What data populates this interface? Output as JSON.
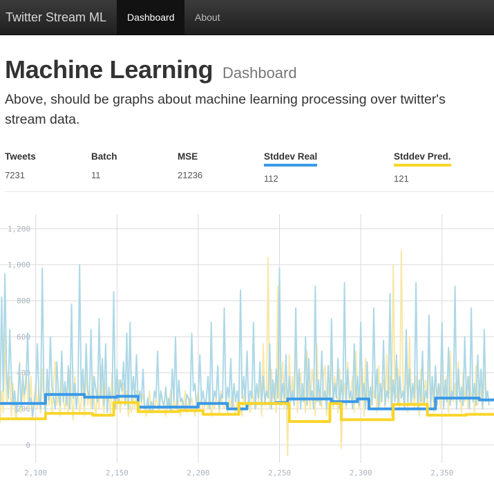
{
  "navbar": {
    "brand": "Twitter Stream ML",
    "items": [
      {
        "label": "Dashboard",
        "active": true
      },
      {
        "label": "About",
        "active": false
      }
    ]
  },
  "header": {
    "title": "Machine Learning",
    "subtitle": "Dashboard",
    "lead": "Above, should be graphs about machine learning processing over twitter's stream data."
  },
  "stats": [
    {
      "label": "Tweets",
      "value": "7231"
    },
    {
      "label": "Batch",
      "value": "11"
    },
    {
      "label": "MSE",
      "value": "21236"
    },
    {
      "label": "Stddev Real",
      "value": "112",
      "underline_color": "#3a99e8"
    },
    {
      "label": "Stddev Pred.",
      "value": "121",
      "underline_color": "#fad52a"
    }
  ],
  "colors": {
    "real_series": "#a9d6e6",
    "pred_series": "#f6e6a0",
    "stddev_real": "#3a99e8",
    "stddev_pred": "#fad52a",
    "grid": "#d9d9d9",
    "tick_text": "#a9b3be"
  },
  "chart_data": {
    "type": "line",
    "xlim": [
      2078,
      2382
    ],
    "ylim": [
      -100,
      1280
    ],
    "yticks": [
      0,
      200,
      400,
      600,
      800,
      1000,
      1200
    ],
    "ytick_labels": [
      "0",
      "200",
      "400",
      "600",
      "800",
      "1,000",
      "1,200"
    ],
    "xticks": [
      2100,
      2150,
      2200,
      2250,
      2300,
      2350
    ],
    "xtick_labels": [
      "2,100",
      "2,150",
      "2,200",
      "2,250",
      "2,300",
      "2,350"
    ],
    "grid": true,
    "legend": "none",
    "series": [
      {
        "x_start": 2078,
        "x_step": 1,
        "values": [
          240,
          820,
          300,
          950,
          420,
          260,
          640,
          380,
          220,
          300,
          180,
          230,
          450,
          210,
          380,
          280,
          340,
          620,
          240,
          260,
          160,
          220,
          300,
          560,
          260,
          200,
          980,
          300,
          180,
          420,
          250,
          600,
          320,
          260,
          200,
          460,
          280,
          220,
          520,
          240,
          350,
          220,
          440,
          200,
          780,
          260,
          340,
          200,
          300,
          1000,
          280,
          420,
          220,
          560,
          300,
          260,
          640,
          200,
          380,
          300,
          240,
          700,
          260,
          480,
          220,
          560,
          180,
          320,
          260,
          260,
          850,
          200,
          420,
          240,
          360,
          300,
          460,
          220,
          620,
          200,
          680,
          240,
          380,
          260,
          500,
          220,
          300,
          240,
          420,
          200,
          200,
          260,
          180,
          240,
          180,
          300,
          260,
          520,
          200,
          300,
          240,
          220,
          320,
          200,
          260,
          180,
          420,
          240,
          600,
          200,
          360,
          240,
          260,
          220,
          200,
          280,
          260,
          220,
          620,
          300,
          340,
          200,
          260,
          500,
          240,
          300,
          220,
          260,
          380,
          200,
          680,
          220,
          300,
          260,
          440,
          200,
          280,
          260,
          760,
          220,
          320,
          260,
          480,
          200,
          340,
          240,
          300,
          220,
          860,
          260,
          380,
          240,
          520,
          220,
          300,
          260,
          680,
          200,
          340,
          260,
          460,
          220,
          380,
          240,
          300,
          260,
          560,
          200,
          360,
          240,
          420,
          260,
          980,
          220,
          340,
          260,
          500,
          200,
          380,
          240,
          300,
          220,
          760,
          260,
          420,
          200,
          340,
          240,
          600,
          220,
          480,
          260,
          300,
          200,
          880,
          240,
          360,
          220,
          520,
          260,
          300,
          200,
          440,
          240,
          700,
          220,
          340,
          260,
          480,
          200,
          360,
          240,
          900,
          220,
          420,
          260,
          300,
          200,
          560,
          240,
          380,
          220,
          680,
          260,
          340,
          200,
          460,
          240,
          320,
          220,
          760,
          260,
          420,
          200,
          340,
          240,
          580,
          220,
          300,
          260,
          840,
          200,
          360,
          240,
          500,
          220,
          380,
          260,
          300,
          200,
          640,
          240,
          420,
          220,
          340,
          260,
          900,
          200,
          360,
          240,
          520,
          220,
          300,
          260,
          720,
          200,
          380,
          240,
          440,
          220,
          340,
          260,
          680,
          200,
          360,
          240,
          540,
          220,
          300,
          260,
          880,
          200,
          420,
          240,
          320,
          220,
          600,
          260,
          380,
          200,
          760,
          240,
          340,
          220,
          500,
          260,
          420,
          200,
          640,
          240,
          300,
          220
        ]
      },
      {
        "x_start": 2078,
        "x_step": 1,
        "values": [
          120,
          300,
          180,
          620,
          220,
          260,
          380,
          160,
          340,
          200,
          140,
          280,
          460,
          180,
          320,
          240,
          400,
          260,
          200,
          380,
          140,
          260,
          340,
          200,
          300,
          180,
          420,
          240,
          160,
          380,
          220,
          300,
          180,
          340,
          460,
          220,
          280,
          160,
          360,
          240,
          200,
          320,
          180,
          420,
          260,
          140,
          380,
          220,
          300,
          180,
          240,
          340,
          160,
          460,
          220,
          300,
          200,
          380,
          240,
          160,
          320,
          200,
          440,
          260,
          180,
          340,
          220,
          280,
          160,
          400,
          240,
          300,
          200,
          360,
          180,
          260,
          340,
          220,
          300,
          160,
          220,
          180,
          260,
          200,
          300,
          220,
          180,
          240,
          280,
          200,
          160,
          220,
          300,
          180,
          240,
          200,
          260,
          220,
          180,
          300,
          240,
          200,
          160,
          260,
          220,
          300,
          180,
          240,
          200,
          280,
          220,
          160,
          260,
          200,
          300,
          180,
          240,
          220,
          260,
          200,
          160,
          240,
          300,
          200,
          260,
          180,
          220,
          240,
          200,
          280,
          160,
          220,
          200,
          260,
          240,
          180,
          300,
          220,
          200,
          240,
          180,
          260,
          200,
          300,
          220,
          180,
          240,
          260,
          200,
          160,
          280,
          220,
          200,
          240,
          180,
          300,
          260,
          200,
          220,
          240,
          380,
          160,
          560,
          220,
          300,
          1040,
          200,
          420,
          260,
          340,
          180,
          880,
          240,
          300,
          460,
          200,
          340,
          -60,
          500,
          260,
          380,
          220,
          600,
          180,
          320,
          400,
          240,
          300,
          180,
          520,
          260,
          200,
          420,
          340,
          160,
          560,
          240,
          300,
          200,
          380,
          440,
          160,
          320,
          260,
          500,
          200,
          380,
          300,
          180,
          420,
          -20,
          260,
          340,
          200,
          460,
          240,
          300,
          380,
          180,
          520,
          260,
          200,
          340,
          420,
          160,
          480,
          240,
          300,
          200,
          380,
          260,
          320,
          180,
          440,
          220,
          300,
          360,
          200,
          500,
          240,
          380,
          160,
          1000,
          300,
          260,
          420,
          200,
          1080,
          340,
          240,
          460,
          180,
          600,
          280,
          320,
          200,
          380,
          260,
          160,
          420,
          220,
          300,
          360,
          200,
          480,
          240,
          320,
          180,
          400,
          260,
          340,
          200,
          440,
          220,
          300,
          380,
          180,
          520,
          260,
          240,
          340,
          200,
          460,
          280,
          180,
          400,
          240,
          320,
          200,
          380,
          260,
          300,
          180,
          440,
          220,
          340,
          280,
          200,
          400,
          260,
          300,
          220
        ]
      },
      {
        "name": "Stddev Real",
        "step_x": [
          2078,
          2083,
          2083,
          2106,
          2106,
          2130,
          2130,
          2150,
          2150,
          2163,
          2163,
          2184,
          2184,
          2200,
          2200,
          2218,
          2218,
          2230,
          2230,
          2248,
          2248,
          2255,
          2255,
          2282,
          2282,
          2298,
          2298,
          2305,
          2305,
          2338,
          2338,
          2346,
          2346,
          2373,
          2373,
          2382
        ],
        "step_y": [
          230,
          230,
          230,
          230,
          280,
          280,
          265,
          265,
          270,
          270,
          210,
          210,
          210,
          210,
          230,
          230,
          200,
          200,
          230,
          230,
          235,
          235,
          255,
          255,
          240,
          240,
          255,
          255,
          200,
          200,
          200,
          200,
          260,
          260,
          250,
          250
        ]
      },
      {
        "name": "Stddev Pred.",
        "step_x": [
          2078,
          2083,
          2083,
          2106,
          2106,
          2135,
          2135,
          2148,
          2148,
          2163,
          2163,
          2188,
          2188,
          2203,
          2203,
          2225,
          2225,
          2250,
          2250,
          2256,
          2256,
          2281,
          2281,
          2288,
          2288,
          2310,
          2310,
          2320,
          2320,
          2341,
          2341,
          2365,
          2365,
          2382
        ],
        "step_y": [
          145,
          145,
          145,
          145,
          175,
          175,
          165,
          165,
          235,
          235,
          185,
          185,
          190,
          190,
          170,
          170,
          230,
          230,
          230,
          230,
          130,
          130,
          230,
          230,
          140,
          140,
          140,
          140,
          225,
          225,
          165,
          165,
          170,
          170
        ]
      }
    ]
  }
}
